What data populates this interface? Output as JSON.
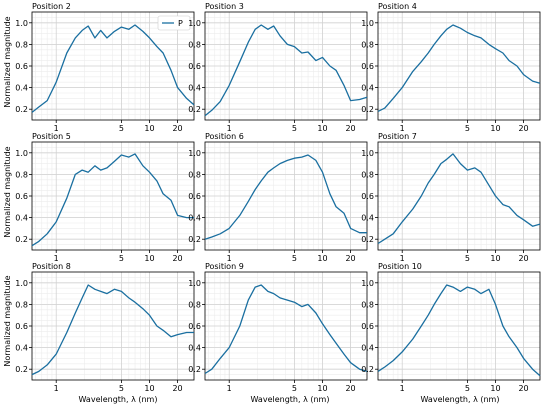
{
  "chart_data": {
    "type": "line",
    "x_scale": "log",
    "xlim": [
      0.55,
      30
    ],
    "ylim": [
      0.1,
      1.1
    ],
    "grid": true,
    "line_color": "#1a6fa0",
    "xlabel": "Wavelength, λ (nm)",
    "ylabel": "Normalized magnitude",
    "x_ticks": [
      1,
      5,
      10,
      20
    ],
    "y_ticks": [
      0.2,
      0.4,
      0.6,
      0.8,
      1.0
    ],
    "y_tick_labels": [
      "0.2",
      "0.4",
      "0.6",
      "0.8",
      "1.0"
    ],
    "legend": {
      "position": "top-right",
      "panel": 0,
      "entries": [
        "P"
      ]
    },
    "panels": [
      {
        "title": "Position 2",
        "series": [
          {
            "name": "P",
            "x": [
              0.55,
              0.65,
              0.8,
              1.0,
              1.3,
              1.6,
              1.9,
              2.2,
              2.6,
              3.0,
              3.5,
              4.2,
              5.0,
              6.0,
              7.0,
              8.5,
              10,
              12,
              14,
              17,
              20,
              25,
              30
            ],
            "y": [
              0.17,
              0.22,
              0.28,
              0.45,
              0.72,
              0.86,
              0.93,
              0.97,
              0.86,
              0.93,
              0.86,
              0.92,
              0.96,
              0.94,
              0.98,
              0.92,
              0.86,
              0.78,
              0.72,
              0.56,
              0.4,
              0.3,
              0.24
            ]
          }
        ]
      },
      {
        "title": "Position 3",
        "series": [
          {
            "name": "P",
            "x": [
              0.55,
              0.65,
              0.8,
              1.0,
              1.3,
              1.6,
              1.9,
              2.2,
              2.6,
              3.0,
              3.5,
              4.2,
              5.0,
              6.0,
              7.0,
              8.5,
              10,
              12,
              14,
              17,
              20,
              25,
              30
            ],
            "y": [
              0.14,
              0.19,
              0.27,
              0.42,
              0.64,
              0.82,
              0.94,
              0.98,
              0.94,
              0.97,
              0.88,
              0.8,
              0.78,
              0.72,
              0.73,
              0.65,
              0.68,
              0.6,
              0.56,
              0.42,
              0.28,
              0.29,
              0.31
            ]
          }
        ]
      },
      {
        "title": "Position 4",
        "series": [
          {
            "name": "P",
            "x": [
              0.55,
              0.65,
              0.8,
              1.0,
              1.3,
              1.6,
              1.9,
              2.2,
              2.6,
              3.0,
              3.5,
              4.2,
              5.0,
              6.0,
              7.0,
              8.5,
              10,
              12,
              14,
              17,
              20,
              25,
              30
            ],
            "y": [
              0.18,
              0.21,
              0.3,
              0.4,
              0.55,
              0.64,
              0.72,
              0.8,
              0.88,
              0.94,
              0.98,
              0.95,
              0.91,
              0.88,
              0.86,
              0.8,
              0.76,
              0.72,
              0.65,
              0.6,
              0.52,
              0.46,
              0.44
            ]
          }
        ]
      },
      {
        "title": "Position 5",
        "series": [
          {
            "name": "P",
            "x": [
              0.55,
              0.65,
              0.8,
              1.0,
              1.3,
              1.6,
              1.9,
              2.2,
              2.6,
              3.0,
              3.5,
              4.2,
              5.0,
              6.0,
              7.0,
              8.5,
              10,
              12,
              14,
              17,
              20,
              25,
              30
            ],
            "y": [
              0.14,
              0.18,
              0.25,
              0.36,
              0.58,
              0.8,
              0.84,
              0.82,
              0.88,
              0.84,
              0.86,
              0.92,
              0.98,
              0.96,
              0.99,
              0.88,
              0.82,
              0.74,
              0.62,
              0.56,
              0.42,
              0.4,
              0.4
            ]
          }
        ]
      },
      {
        "title": "Position 6",
        "series": [
          {
            "name": "P",
            "x": [
              0.55,
              0.65,
              0.8,
              1.0,
              1.3,
              1.6,
              1.9,
              2.2,
              2.6,
              3.0,
              3.5,
              4.2,
              5.0,
              6.0,
              7.0,
              8.5,
              10,
              12,
              14,
              17,
              20,
              25,
              30
            ],
            "y": [
              0.2,
              0.22,
              0.25,
              0.3,
              0.42,
              0.55,
              0.66,
              0.74,
              0.82,
              0.86,
              0.9,
              0.93,
              0.95,
              0.96,
              0.98,
              0.93,
              0.82,
              0.62,
              0.5,
              0.44,
              0.3,
              0.26,
              0.26
            ]
          }
        ]
      },
      {
        "title": "Position 7",
        "series": [
          {
            "name": "P",
            "x": [
              0.55,
              0.65,
              0.8,
              1.0,
              1.3,
              1.6,
              1.9,
              2.2,
              2.6,
              3.0,
              3.5,
              4.2,
              5.0,
              6.0,
              7.0,
              8.5,
              10,
              12,
              14,
              17,
              20,
              25,
              30
            ],
            "y": [
              0.16,
              0.2,
              0.25,
              0.36,
              0.48,
              0.6,
              0.72,
              0.8,
              0.9,
              0.94,
              0.99,
              0.9,
              0.84,
              0.86,
              0.82,
              0.7,
              0.6,
              0.52,
              0.5,
              0.42,
              0.38,
              0.32,
              0.34
            ]
          }
        ]
      },
      {
        "title": "Position 8",
        "series": [
          {
            "name": "P",
            "x": [
              0.55,
              0.65,
              0.8,
              1.0,
              1.3,
              1.6,
              1.9,
              2.2,
              2.6,
              3.0,
              3.5,
              4.2,
              5.0,
              6.0,
              7.0,
              8.5,
              10,
              12,
              14,
              17,
              20,
              25,
              30
            ],
            "y": [
              0.15,
              0.18,
              0.24,
              0.34,
              0.54,
              0.72,
              0.86,
              0.98,
              0.94,
              0.92,
              0.9,
              0.94,
              0.92,
              0.86,
              0.82,
              0.76,
              0.7,
              0.6,
              0.56,
              0.5,
              0.52,
              0.54,
              0.54
            ]
          }
        ]
      },
      {
        "title": "Position 9",
        "series": [
          {
            "name": "P",
            "x": [
              0.55,
              0.65,
              0.8,
              1.0,
              1.3,
              1.6,
              1.9,
              2.2,
              2.6,
              3.0,
              3.5,
              4.2,
              5.0,
              6.0,
              7.0,
              8.5,
              10,
              12,
              14,
              17,
              20,
              25,
              30
            ],
            "y": [
              0.16,
              0.2,
              0.3,
              0.4,
              0.6,
              0.84,
              0.96,
              0.98,
              0.92,
              0.9,
              0.86,
              0.84,
              0.82,
              0.78,
              0.8,
              0.72,
              0.62,
              0.52,
              0.44,
              0.34,
              0.26,
              0.2,
              0.18
            ]
          }
        ]
      },
      {
        "title": "Position 10",
        "series": [
          {
            "name": "P",
            "x": [
              0.55,
              0.65,
              0.8,
              1.0,
              1.3,
              1.6,
              1.9,
              2.2,
              2.6,
              3.0,
              3.5,
              4.2,
              5.0,
              6.0,
              7.0,
              8.5,
              10,
              12,
              14,
              17,
              20,
              25,
              30
            ],
            "y": [
              0.18,
              0.22,
              0.28,
              0.36,
              0.48,
              0.6,
              0.7,
              0.8,
              0.9,
              0.98,
              0.96,
              0.92,
              0.96,
              0.94,
              0.9,
              0.94,
              0.8,
              0.6,
              0.5,
              0.4,
              0.3,
              0.2,
              0.14
            ]
          }
        ]
      }
    ]
  }
}
